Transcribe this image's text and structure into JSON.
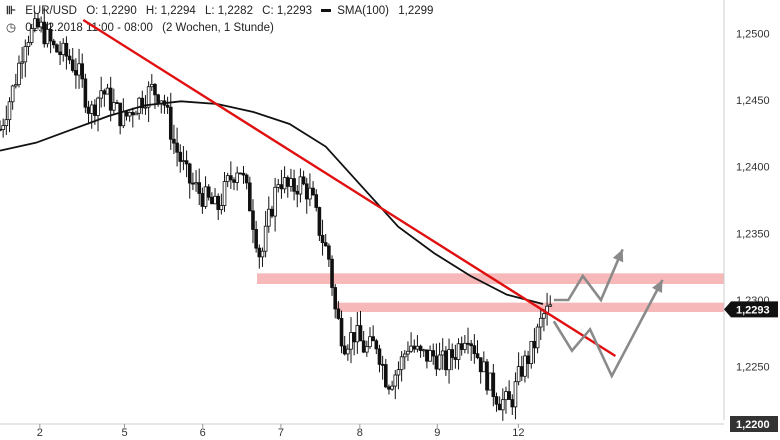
{
  "header": {
    "symbol": "EUR/USD",
    "open": "O: 1,2290",
    "high": "H: 1,2294",
    "low": "L: 1,2282",
    "close": "C: 1,2293",
    "sma_label": "SMA(100)",
    "sma_value": "1,2299",
    "date_range": "01.02.2018 11:00 - 08:00",
    "interval": "(2 Wochen, 1 Stunde)"
  },
  "colors": {
    "candle": "#111111",
    "sma": "#111111",
    "trendline": "#e01010",
    "zone": "#f6b8b8",
    "projection": "#8a8a8a",
    "price_tag": "#111111"
  },
  "chart_data": {
    "type": "candlestick",
    "ylim": [
      1.2195,
      1.2525
    ],
    "y_ticks": [
      1.25,
      1.245,
      1.24,
      1.235,
      1.23,
      1.225,
      1.22
    ],
    "y_tick_labels": [
      "1,2500",
      "1,2450",
      "1,2400",
      "1,2350",
      "1,2300",
      "1,2250",
      "1,2200"
    ],
    "x_ticks": [
      {
        "label": "2",
        "t": 0.055
      },
      {
        "label": "5",
        "t": 0.172
      },
      {
        "label": "6",
        "t": 0.28
      },
      {
        "label": "7",
        "t": 0.388
      },
      {
        "label": "8",
        "t": 0.497
      },
      {
        "label": "9",
        "t": 0.604
      },
      {
        "label": "12",
        "t": 0.716
      }
    ],
    "price_path": [
      [
        0.0,
        1.2428
      ],
      [
        0.02,
        1.2462
      ],
      [
        0.035,
        1.2497
      ],
      [
        0.055,
        1.2505
      ],
      [
        0.075,
        1.2488
      ],
      [
        0.095,
        1.2482
      ],
      [
        0.11,
        1.2468
      ],
      [
        0.125,
        1.244
      ],
      [
        0.14,
        1.2458
      ],
      [
        0.155,
        1.2447
      ],
      [
        0.17,
        1.2435
      ],
      [
        0.19,
        1.2448
      ],
      [
        0.21,
        1.2458
      ],
      [
        0.225,
        1.2452
      ],
      [
        0.24,
        1.2418
      ],
      [
        0.26,
        1.239
      ],
      [
        0.28,
        1.2378
      ],
      [
        0.3,
        1.2368
      ],
      [
        0.315,
        1.2388
      ],
      [
        0.33,
        1.2402
      ],
      [
        0.345,
        1.2372
      ],
      [
        0.36,
        1.233
      ],
      [
        0.372,
        1.2362
      ],
      [
        0.385,
        1.2392
      ],
      [
        0.4,
        1.2382
      ],
      [
        0.415,
        1.2388
      ],
      [
        0.43,
        1.2378
      ],
      [
        0.44,
        1.2355
      ],
      [
        0.455,
        1.233
      ],
      [
        0.463,
        1.2292
      ],
      [
        0.475,
        1.2268
      ],
      [
        0.49,
        1.2275
      ],
      [
        0.505,
        1.2262
      ],
      [
        0.52,
        1.2268
      ],
      [
        0.535,
        1.2238
      ],
      [
        0.55,
        1.2248
      ],
      [
        0.565,
        1.2268
      ],
      [
        0.58,
        1.2258
      ],
      [
        0.6,
        1.2258
      ],
      [
        0.615,
        1.2252
      ],
      [
        0.63,
        1.2262
      ],
      [
        0.645,
        1.2278
      ],
      [
        0.66,
        1.2258
      ],
      [
        0.675,
        1.2238
      ],
      [
        0.69,
        1.2225
      ],
      [
        0.705,
        1.2222
      ],
      [
        0.72,
        1.2248
      ],
      [
        0.735,
        1.2262
      ],
      [
        0.75,
        1.2288
      ],
      [
        0.76,
        1.2293
      ]
    ],
    "sma_series": {
      "name": "SMA(100)",
      "points": [
        [
          0.0,
          1.2412
        ],
        [
          0.05,
          1.2418
        ],
        [
          0.1,
          1.2428
        ],
        [
          0.15,
          1.2438
        ],
        [
          0.2,
          1.2446
        ],
        [
          0.25,
          1.2449
        ],
        [
          0.3,
          1.2447
        ],
        [
          0.35,
          1.2441
        ],
        [
          0.4,
          1.2432
        ],
        [
          0.45,
          1.2415
        ],
        [
          0.5,
          1.2385
        ],
        [
          0.55,
          1.2355
        ],
        [
          0.6,
          1.2335
        ],
        [
          0.65,
          1.2318
        ],
        [
          0.7,
          1.2304
        ],
        [
          0.75,
          1.2297
        ]
      ]
    },
    "trendline": [
      [
        0.115,
        1.251
      ],
      [
        0.85,
        1.2258
      ]
    ],
    "resistance_zones": [
      {
        "x_from": 0.355,
        "x_to": 1.0,
        "y_top": 1.232,
        "y_bottom": 1.2312
      },
      {
        "x_from": 0.465,
        "x_to": 1.0,
        "y_top": 1.2298,
        "y_bottom": 1.2291
      }
    ],
    "projection_up": [
      [
        0.765,
        1.23
      ],
      [
        0.785,
        1.23
      ],
      [
        0.805,
        1.2318
      ],
      [
        0.83,
        1.23
      ],
      [
        0.86,
        1.2338
      ]
    ],
    "projection_down": [
      [
        0.765,
        1.2284
      ],
      [
        0.79,
        1.2262
      ],
      [
        0.815,
        1.2278
      ],
      [
        0.845,
        1.2243
      ],
      [
        0.915,
        1.2315
      ]
    ],
    "last_price": {
      "label": "1,2293",
      "value": 1.2293
    },
    "bottom_tag": {
      "label": "1,2200",
      "value": 1.22
    }
  }
}
